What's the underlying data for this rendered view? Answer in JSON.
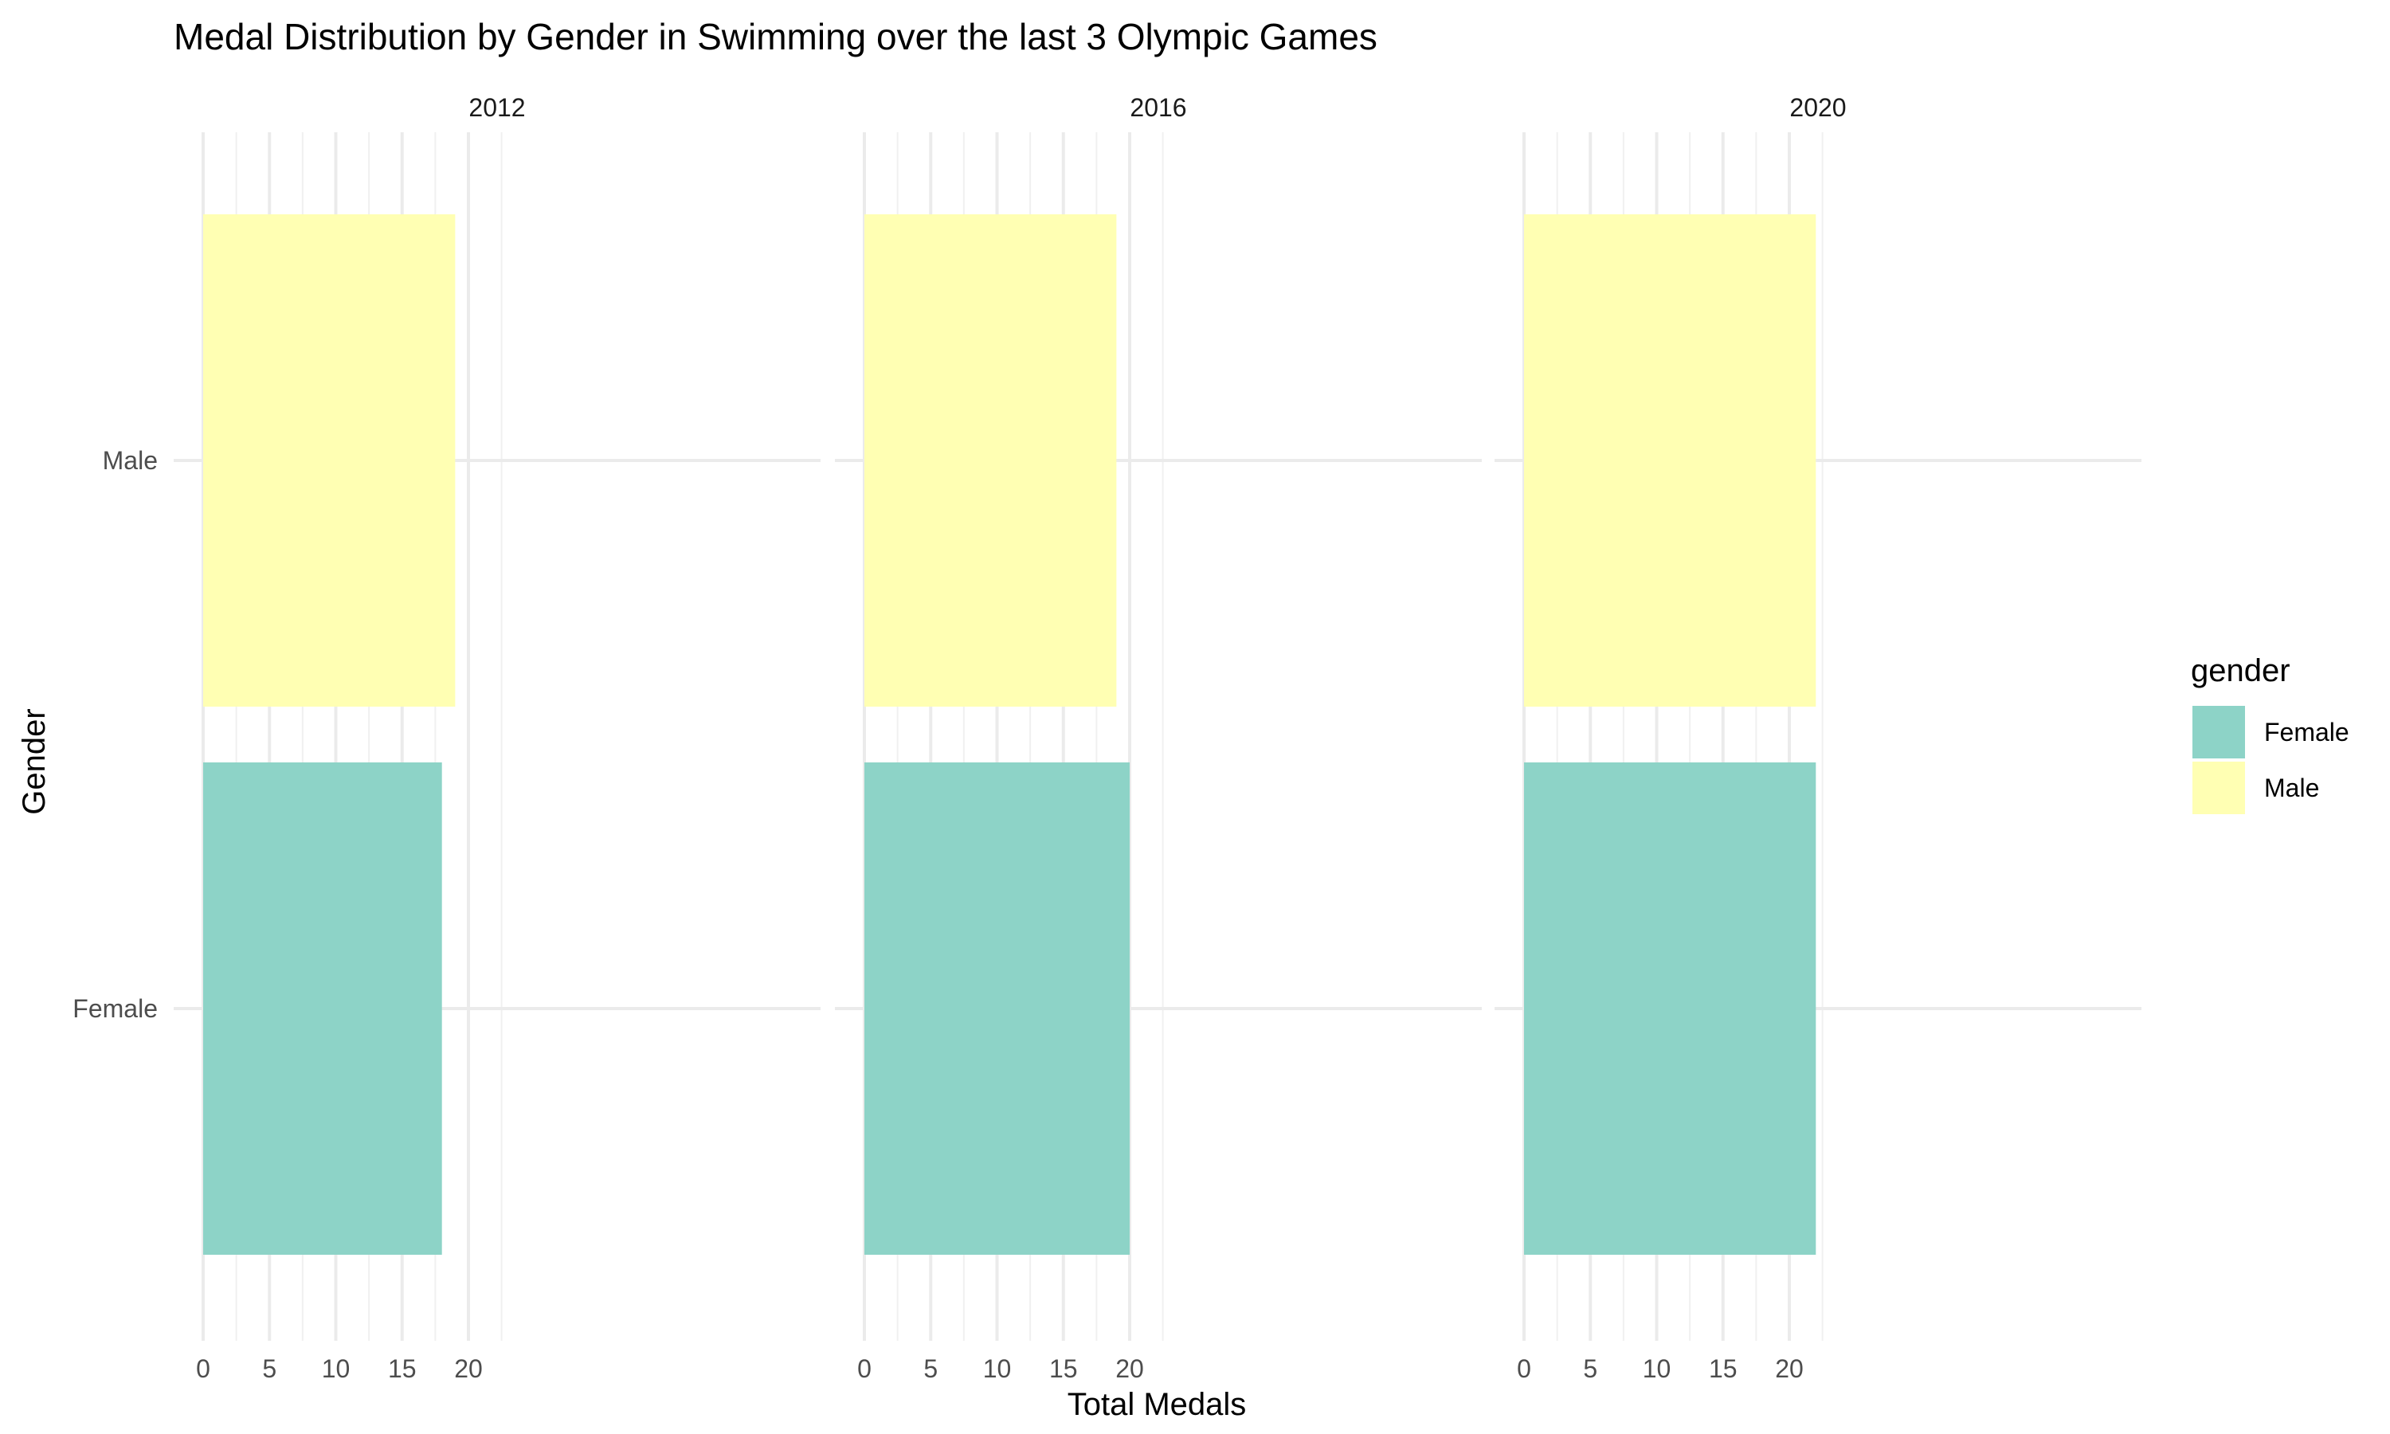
{
  "chart_data": {
    "type": "bar",
    "orientation": "horizontal",
    "title": "Medal Distribution by Gender in Swimming over the last 3 Olympic Games",
    "xlabel": "Total Medals",
    "ylabel": "Gender",
    "categories": [
      "Female",
      "Male"
    ],
    "xticks": [
      0,
      5,
      10,
      15,
      20
    ],
    "xlim": [
      0,
      23
    ],
    "grid": true,
    "facets": [
      {
        "label": "2012",
        "values": {
          "Female": 18,
          "Male": 19
        }
      },
      {
        "label": "2016",
        "values": {
          "Female": 20,
          "Male": 19
        }
      },
      {
        "label": "2020",
        "values": {
          "Female": 22,
          "Male": 22
        }
      }
    ],
    "legend": {
      "title": "gender",
      "position": "right",
      "entries": [
        {
          "name": "Female",
          "color": "#8dd3c7"
        },
        {
          "name": "Male",
          "color": "#ffffb3"
        }
      ]
    }
  }
}
